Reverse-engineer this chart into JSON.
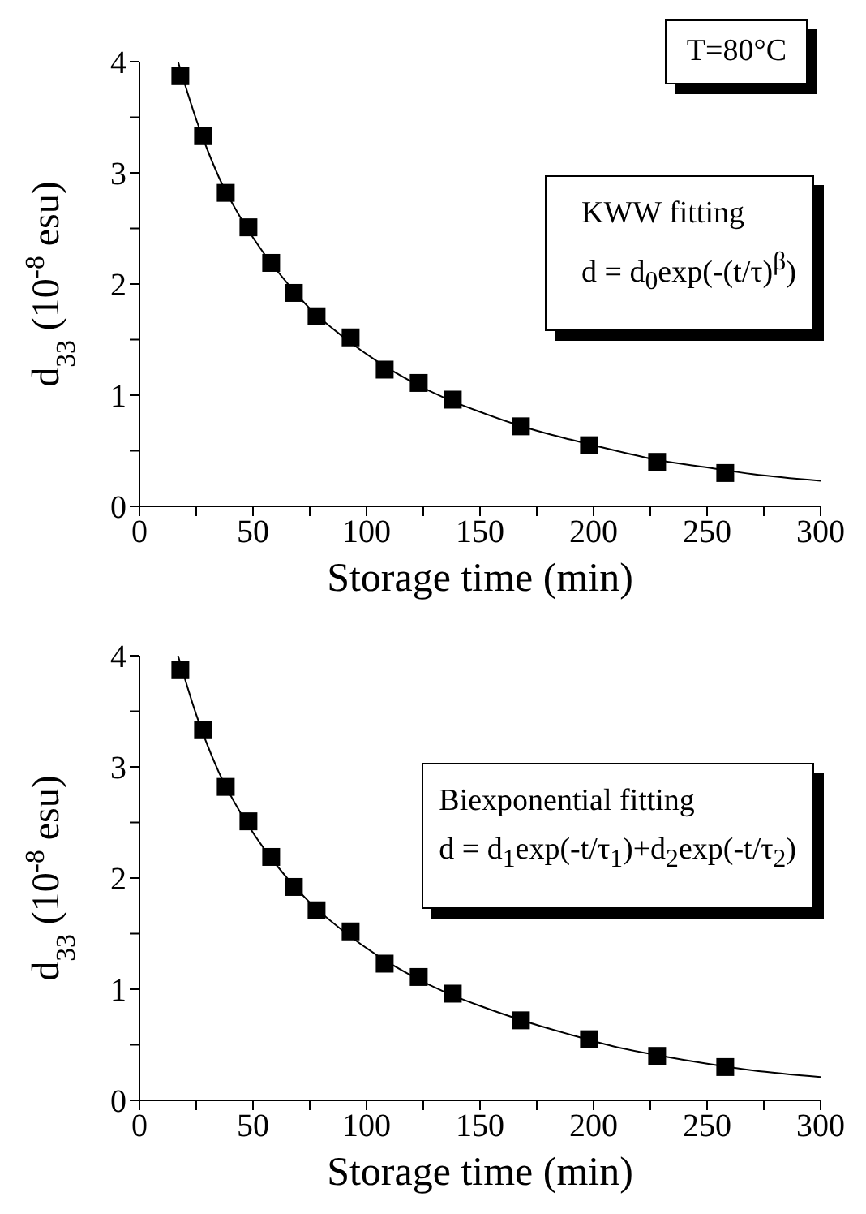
{
  "chart_data": [
    {
      "type": "scatter",
      "xlabel": "Storage time (min)",
      "ylabel": "d$_{33}$ (10$^{-8}$ esu)",
      "xlim": [
        0,
        300
      ],
      "xticks": [
        0,
        {
          "value": 25,
          "label": null
        },
        50,
        {
          "value": 75,
          "label": null
        },
        100,
        {
          "value": 125,
          "label": null
        },
        150,
        {
          "value": 175,
          "label": null
        },
        200,
        {
          "value": 225,
          "label": null
        },
        250,
        {
          "value": 275,
          "label": null
        },
        300
      ],
      "ylim": [
        0,
        4
      ],
      "yticks": [
        0,
        {
          "value": 0.5,
          "label": null
        },
        1,
        {
          "value": 1.5,
          "label": null
        },
        2,
        {
          "value": 2.5,
          "label": null
        },
        3,
        {
          "value": 3.5,
          "label": null
        },
        4
      ],
      "annotations": [
        "T=80°C",
        "KWW fitting",
        "d = d$_{0}$exp(-(t/τ)$^{β}$)"
      ],
      "series": [
        {
          "marker": "square",
          "color": "#000000",
          "x": [
            18,
            28,
            38,
            48,
            58,
            68,
            78,
            93,
            108,
            123,
            138,
            168,
            198,
            228,
            258
          ],
          "values": [
            3.87,
            3.33,
            2.82,
            2.51,
            2.19,
            1.92,
            1.71,
            1.52,
            1.23,
            1.11,
            0.96,
            0.72,
            0.55,
            0.4,
            0.3
          ]
        },
        {
          "type": "line",
          "marker": "none",
          "color": "#000000",
          "x": [
            17,
            25,
            35,
            45,
            55,
            65,
            75,
            90,
            105,
            120,
            135,
            150,
            170,
            190,
            210,
            230,
            250,
            270,
            300
          ],
          "values": [
            4.0,
            3.48,
            2.96,
            2.58,
            2.27,
            2.01,
            1.78,
            1.52,
            1.3,
            1.12,
            0.97,
            0.85,
            0.71,
            0.6,
            0.5,
            0.41,
            0.35,
            0.29,
            0.23
          ]
        }
      ]
    },
    {
      "type": "scatter",
      "xlabel": "Storage time (min)",
      "ylabel": "d$_{33}$ (10$^{-8}$ esu)",
      "xlim": [
        0,
        300
      ],
      "xticks": [
        0,
        {
          "value": 25,
          "label": null
        },
        50,
        {
          "value": 75,
          "label": null
        },
        100,
        {
          "value": 125,
          "label": null
        },
        150,
        {
          "value": 175,
          "label": null
        },
        200,
        {
          "value": 225,
          "label": null
        },
        250,
        {
          "value": 275,
          "label": null
        },
        300
      ],
      "ylim": [
        0,
        4
      ],
      "yticks": [
        0,
        {
          "value": 0.5,
          "label": null
        },
        1,
        {
          "value": 1.5,
          "label": null
        },
        2,
        {
          "value": 2.5,
          "label": null
        },
        3,
        {
          "value": 3.5,
          "label": null
        },
        4
      ],
      "annotations": [
        "Biexponential fitting",
        "d = d$_{1}$exp(-t/τ$_{1}$)+d$_{2}$exp(-t/τ$_{2}$)"
      ],
      "series": [
        {
          "marker": "square",
          "color": "#000000",
          "x": [
            18,
            28,
            38,
            48,
            58,
            68,
            78,
            93,
            108,
            123,
            138,
            168,
            198,
            228,
            258
          ],
          "values": [
            3.87,
            3.33,
            2.82,
            2.51,
            2.19,
            1.92,
            1.71,
            1.52,
            1.23,
            1.11,
            0.96,
            0.72,
            0.55,
            0.4,
            0.3
          ]
        },
        {
          "type": "line",
          "marker": "none",
          "color": "#000000",
          "x": [
            17,
            25,
            35,
            45,
            55,
            65,
            75,
            90,
            105,
            120,
            135,
            150,
            170,
            190,
            210,
            230,
            250,
            270,
            300
          ],
          "values": [
            4.0,
            3.47,
            2.95,
            2.57,
            2.26,
            2.0,
            1.78,
            1.52,
            1.3,
            1.12,
            0.97,
            0.85,
            0.71,
            0.59,
            0.48,
            0.4,
            0.33,
            0.27,
            0.21
          ]
        }
      ]
    }
  ]
}
